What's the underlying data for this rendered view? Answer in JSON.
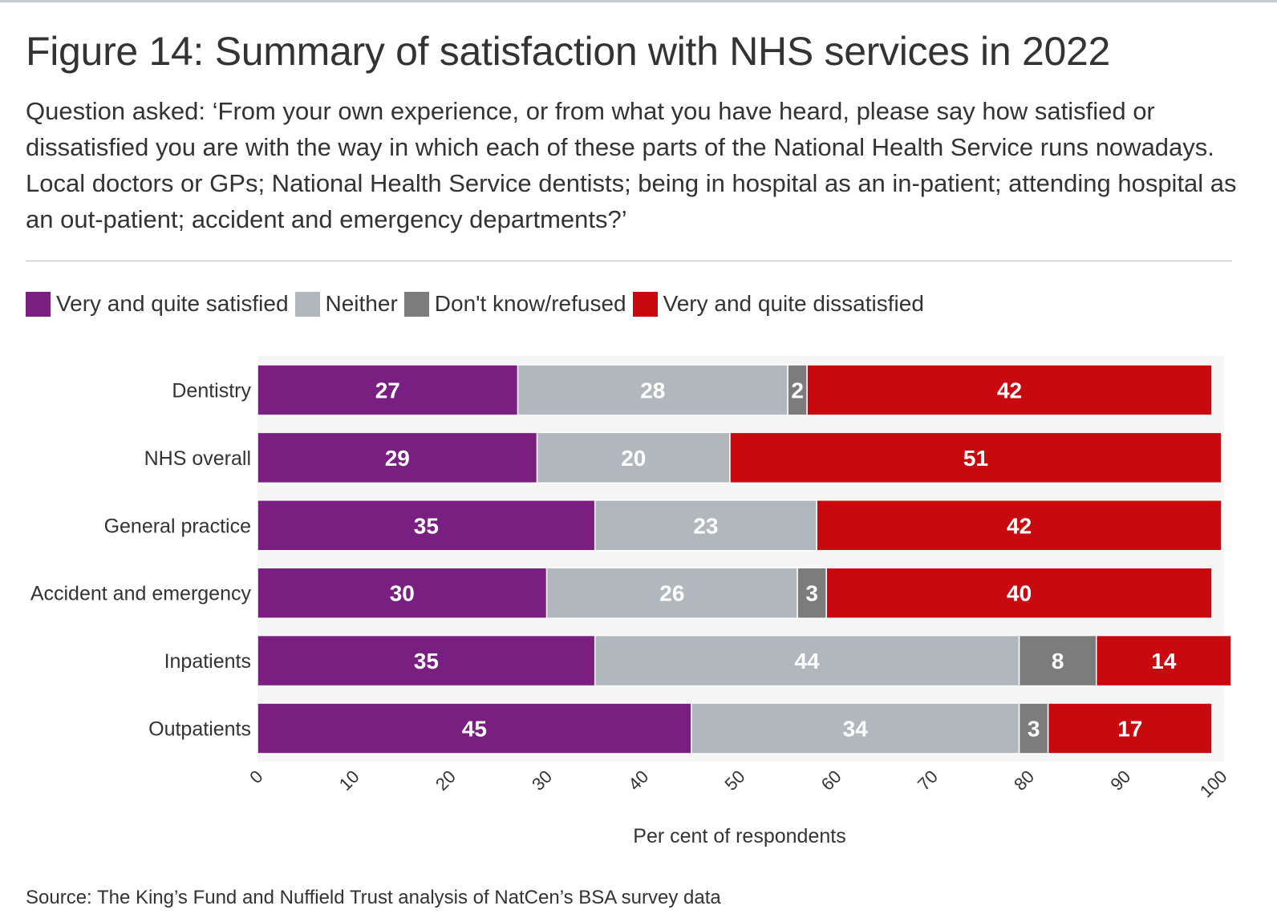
{
  "title": "Figure 14: Summary of satisfaction with NHS services in 2022",
  "subtitle": "Question asked: ‘From your own experience, or from what you have heard, please say how satisfied or dissatisfied you are with the way in which each of these parts of the National Health Service runs nowadays. Local doctors or GPs; National Health Service dentists; being in hospital as an in-patient; attending hospital as an out-patient; accident and emergency departments?’",
  "source": "Source: The King’s Fund and Nuffield Trust analysis of NatCen’s BSA survey data",
  "chart_data": {
    "type": "bar",
    "orientation": "horizontal",
    "stacked": true,
    "categories": [
      "Dentistry",
      "NHS overall",
      "General practice",
      "Accident and emergency",
      "Inpatients",
      "Outpatients"
    ],
    "series": [
      {
        "name": "Very and quite satisfied",
        "color": "#7a1f82",
        "values": [
          27,
          29,
          35,
          30,
          35,
          45
        ]
      },
      {
        "name": "Neither",
        "color": "#b1b8bd",
        "values": [
          28,
          20,
          23,
          26,
          44,
          34
        ]
      },
      {
        "name": "Don't know/refused",
        "color": "#7c7c7c",
        "values": [
          2,
          0,
          0,
          3,
          8,
          3
        ]
      },
      {
        "name": "Very and quite dissatisfied",
        "color": "#c8090f",
        "values": [
          42,
          51,
          42,
          40,
          14,
          17
        ]
      }
    ],
    "xlabel": "Per cent of respondents",
    "ylabel": "",
    "xlim": [
      0,
      100
    ],
    "xticks": [
      0,
      10,
      20,
      30,
      40,
      50,
      60,
      70,
      80,
      90,
      100
    ],
    "legend_position": "top-left",
    "grid": false
  }
}
